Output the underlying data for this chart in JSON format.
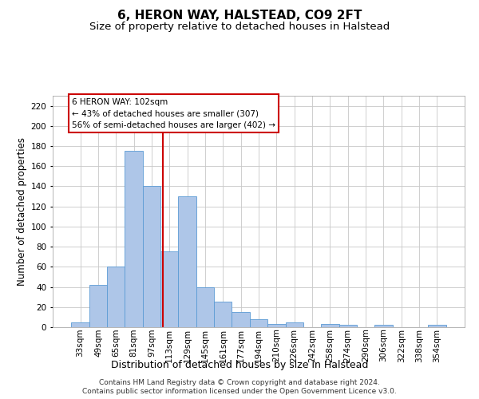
{
  "title1": "6, HERON WAY, HALSTEAD, CO9 2FT",
  "title2": "Size of property relative to detached houses in Halstead",
  "xlabel": "Distribution of detached houses by size in Halstead",
  "ylabel": "Number of detached properties",
  "categories": [
    "33sqm",
    "49sqm",
    "65sqm",
    "81sqm",
    "97sqm",
    "113sqm",
    "129sqm",
    "145sqm",
    "161sqm",
    "177sqm",
    "194sqm",
    "210sqm",
    "226sqm",
    "242sqm",
    "258sqm",
    "274sqm",
    "290sqm",
    "306sqm",
    "322sqm",
    "338sqm",
    "354sqm"
  ],
  "values": [
    5,
    42,
    60,
    175,
    140,
    75,
    130,
    40,
    25,
    15,
    8,
    3,
    5,
    0,
    3,
    2,
    0,
    2,
    0,
    0,
    2
  ],
  "bar_color": "#aec6e8",
  "bar_edge_color": "#5b9bd5",
  "vline_x": 4.62,
  "vline_color": "#cc0000",
  "annotation_text": "6 HERON WAY: 102sqm\n← 43% of detached houses are smaller (307)\n56% of semi-detached houses are larger (402) →",
  "annotation_box_color": "#ffffff",
  "annotation_box_edge": "#cc0000",
  "ylim": [
    0,
    230
  ],
  "yticks": [
    0,
    20,
    40,
    60,
    80,
    100,
    120,
    140,
    160,
    180,
    200,
    220
  ],
  "footnote1": "Contains HM Land Registry data © Crown copyright and database right 2024.",
  "footnote2": "Contains public sector information licensed under the Open Government Licence v3.0.",
  "background_color": "#ffffff",
  "grid_color": "#c8c8c8",
  "title1_fontsize": 11,
  "title2_fontsize": 9.5,
  "xlabel_fontsize": 9,
  "ylabel_fontsize": 8.5,
  "tick_fontsize": 7.5,
  "footnote_fontsize": 6.5,
  "ann_fontsize": 7.5
}
